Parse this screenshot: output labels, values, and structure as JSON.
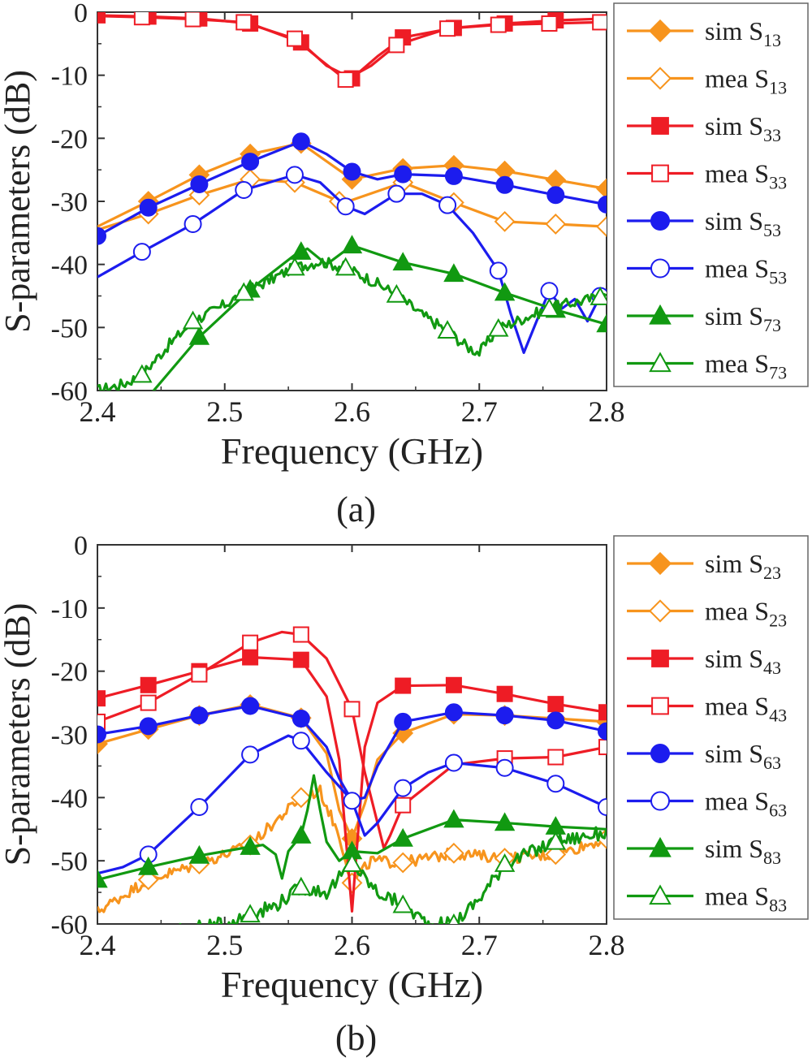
{
  "chart_data": [
    {
      "type": "line",
      "panel_label": "(a)",
      "xlabel": "Frequency (GHz)",
      "ylabel": "S-parameters (dB)",
      "xlim": [
        2.4,
        2.8
      ],
      "ylim": [
        -60,
        0
      ],
      "xticks": [
        "2.4",
        "2.5",
        "2.6",
        "2.7",
        "2.8"
      ],
      "yticks": [
        "0",
        "-10",
        "-20",
        "-30",
        "-40",
        "-50",
        "-60"
      ],
      "legend_position": "right",
      "series": [
        {
          "name_main": "sim S",
          "name_sub": "13",
          "color": "#f7941d",
          "marker": "diamond",
          "filled": true,
          "x": [
            2.4,
            2.44,
            2.48,
            2.52,
            2.56,
            2.6,
            2.64,
            2.68,
            2.72,
            2.76,
            2.8
          ],
          "y": [
            -34,
            -30,
            -25.8,
            -22.5,
            -20.8,
            -26.5,
            -24.8,
            -24.3,
            -25.2,
            -26.6,
            -28
          ],
          "markers_x": [
            2.44,
            2.48,
            2.52,
            2.56,
            2.6,
            2.64,
            2.68,
            2.72,
            2.76,
            2.8
          ]
        },
        {
          "name_main": "mea S",
          "name_sub": "13",
          "color": "#f7941d",
          "marker": "diamond",
          "filled": false,
          "x": [
            2.4,
            2.44,
            2.48,
            2.52,
            2.555,
            2.59,
            2.6,
            2.64,
            2.68,
            2.72,
            2.76,
            2.8
          ],
          "y": [
            -34.5,
            -32,
            -29,
            -26.5,
            -27,
            -30,
            -29.8,
            -27,
            -30.2,
            -33.2,
            -33.6,
            -34
          ],
          "markers_x": [
            2.44,
            2.48,
            2.52,
            2.555,
            2.59,
            2.64,
            2.68,
            2.72,
            2.76,
            2.8
          ]
        },
        {
          "name_main": "sim S",
          "name_sub": "33",
          "color": "#ee1c25",
          "marker": "square",
          "filled": true,
          "x": [
            2.4,
            2.44,
            2.48,
            2.52,
            2.56,
            2.58,
            2.6,
            2.62,
            2.64,
            2.68,
            2.72,
            2.76,
            2.8
          ],
          "y": [
            -0.5,
            -0.7,
            -1.0,
            -1.8,
            -4.8,
            -8.5,
            -10.5,
            -7,
            -4,
            -2.5,
            -1.8,
            -1.3,
            -1.0
          ],
          "markers_x": [
            2.4,
            2.44,
            2.48,
            2.52,
            2.56,
            2.6,
            2.64,
            2.68,
            2.72,
            2.76
          ]
        },
        {
          "name_main": "mea S",
          "name_sub": "33",
          "color": "#ee1c25",
          "marker": "square",
          "filled": false,
          "x": [
            2.4,
            2.435,
            2.475,
            2.515,
            2.555,
            2.575,
            2.595,
            2.615,
            2.635,
            2.675,
            2.715,
            2.755,
            2.795,
            2.8
          ],
          "y": [
            -0.6,
            -0.8,
            -1.1,
            -1.6,
            -4.2,
            -7.5,
            -10.7,
            -8.5,
            -5.2,
            -2.6,
            -2,
            -1.8,
            -1.6,
            -1.6
          ],
          "markers_x": [
            2.435,
            2.475,
            2.515,
            2.555,
            2.595,
            2.635,
            2.675,
            2.715,
            2.755,
            2.795
          ]
        },
        {
          "name_main": "sim S",
          "name_sub": "53",
          "color": "#1c1cee",
          "marker": "circle",
          "filled": true,
          "x": [
            2.4,
            2.44,
            2.48,
            2.52,
            2.56,
            2.58,
            2.6,
            2.62,
            2.64,
            2.68,
            2.72,
            2.76,
            2.8
          ],
          "y": [
            -35.5,
            -31,
            -27.3,
            -23.7,
            -20.5,
            -22.5,
            -25.3,
            -26.5,
            -25.7,
            -26,
            -27.4,
            -29,
            -30.5
          ],
          "markers_x": [
            2.4,
            2.44,
            2.48,
            2.52,
            2.56,
            2.6,
            2.64,
            2.68,
            2.72,
            2.76,
            2.8
          ]
        },
        {
          "name_main": "mea S",
          "name_sub": "53",
          "color": "#1c1cee",
          "marker": "circle",
          "filled": false,
          "x": [
            2.4,
            2.435,
            2.475,
            2.515,
            2.555,
            2.575,
            2.595,
            2.61,
            2.635,
            2.655,
            2.675,
            2.695,
            2.715,
            2.725,
            2.735,
            2.745,
            2.755,
            2.765,
            2.775,
            2.785,
            2.795,
            2.8
          ],
          "y": [
            -42,
            -38,
            -33.6,
            -28.2,
            -25.8,
            -27,
            -30.8,
            -32,
            -28.8,
            -28.8,
            -30.6,
            -35,
            -41,
            -48,
            -54,
            -49,
            -44.2,
            -47,
            -45.5,
            -49,
            -45,
            -44
          ],
          "markers_x": [
            2.435,
            2.475,
            2.515,
            2.555,
            2.595,
            2.635,
            2.675,
            2.715,
            2.755,
            2.795
          ]
        },
        {
          "name_main": "sim S",
          "name_sub": "73",
          "color": "#119911",
          "marker": "triangle",
          "filled": true,
          "x": [
            2.4,
            2.44,
            2.48,
            2.52,
            2.555,
            2.565,
            2.58,
            2.6,
            2.64,
            2.68,
            2.72,
            2.76,
            2.8
          ],
          "y": [
            -66,
            -61,
            -51.5,
            -44,
            -38.5,
            -37.5,
            -40,
            -37,
            -39.7,
            -41.5,
            -44.5,
            -47.2,
            -49.5
          ],
          "markers_x": [
            2.48,
            2.52,
            2.56,
            2.6,
            2.64,
            2.68,
            2.72,
            2.76,
            2.8
          ]
        },
        {
          "name_main": "mea S",
          "name_sub": "73",
          "color": "#119911",
          "marker": "triangle",
          "filled": false,
          "x": [
            2.4,
            2.42,
            2.435,
            2.455,
            2.475,
            2.495,
            2.515,
            2.535,
            2.555,
            2.575,
            2.595,
            2.615,
            2.635,
            2.655,
            2.675,
            2.69,
            2.7,
            2.715,
            2.735,
            2.755,
            2.775,
            2.795,
            2.8
          ],
          "y": [
            -60,
            -59,
            -57.5,
            -53,
            -49,
            -47,
            -44.5,
            -42.5,
            -40.5,
            -39.5,
            -40.5,
            -42.5,
            -44.8,
            -48,
            -50.5,
            -53,
            -54,
            -50.2,
            -48.5,
            -47,
            -46,
            -45.2,
            -45
          ],
          "markers_x": [
            2.435,
            2.475,
            2.515,
            2.555,
            2.595,
            2.635,
            2.675,
            2.715,
            2.755,
            2.795
          ],
          "noise": 0.9
        }
      ]
    },
    {
      "type": "line",
      "panel_label": "(b)",
      "xlabel": "Frequency (GHz)",
      "ylabel": "S-parameters (dB)",
      "xlim": [
        2.4,
        2.8
      ],
      "ylim": [
        -60,
        0
      ],
      "xticks": [
        "2.4",
        "2.5",
        "2.6",
        "2.7",
        "2.8"
      ],
      "yticks": [
        "0",
        "-10",
        "-20",
        "-30",
        "-40",
        "-50",
        "-60"
      ],
      "legend_position": "right",
      "series": [
        {
          "name_main": "sim S",
          "name_sub": "23",
          "color": "#f7941d",
          "marker": "diamond",
          "filled": true,
          "x": [
            2.4,
            2.44,
            2.48,
            2.52,
            2.56,
            2.58,
            2.59,
            2.6,
            2.61,
            2.62,
            2.64,
            2.68,
            2.72,
            2.76,
            2.8
          ],
          "y": [
            -31.5,
            -29.2,
            -27,
            -25.3,
            -27.4,
            -33,
            -42,
            -46.5,
            -41,
            -34,
            -29.8,
            -26.8,
            -27,
            -27.5,
            -28
          ],
          "markers_x": [
            2.4,
            2.44,
            2.48,
            2.52,
            2.56,
            2.6,
            2.64,
            2.68,
            2.72,
            2.76,
            2.8
          ]
        },
        {
          "name_main": "mea S",
          "name_sub": "23",
          "color": "#f7941d",
          "marker": "diamond",
          "filled": false,
          "x": [
            2.4,
            2.44,
            2.48,
            2.52,
            2.56,
            2.575,
            2.59,
            2.6,
            2.615,
            2.64,
            2.68,
            2.72,
            2.76,
            2.8
          ],
          "y": [
            -58,
            -53,
            -50.5,
            -47.5,
            -40,
            -39,
            -46,
            -53.5,
            -50,
            -50.3,
            -48.8,
            -49.6,
            -49,
            -46.5
          ],
          "markers_x": [
            2.44,
            2.48,
            2.52,
            2.56,
            2.6,
            2.64,
            2.68,
            2.72,
            2.76,
            2.8
          ],
          "noise": 0.9
        },
        {
          "name_main": "sim S",
          "name_sub": "43",
          "color": "#ee1c25",
          "marker": "square",
          "filled": true,
          "x": [
            2.4,
            2.44,
            2.48,
            2.52,
            2.56,
            2.58,
            2.59,
            2.6,
            2.605,
            2.61,
            2.62,
            2.64,
            2.68,
            2.72,
            2.76,
            2.8
          ],
          "y": [
            -24.3,
            -22.2,
            -20,
            -17.8,
            -18.2,
            -24,
            -34,
            -58,
            -45,
            -32,
            -25,
            -22.3,
            -22.2,
            -23.6,
            -25.2,
            -26.5
          ],
          "markers_x": [
            2.4,
            2.44,
            2.48,
            2.52,
            2.56,
            2.64,
            2.68,
            2.72,
            2.76,
            2.8
          ]
        },
        {
          "name_main": "mea S",
          "name_sub": "43",
          "color": "#ee1c25",
          "marker": "square",
          "filled": false,
          "x": [
            2.4,
            2.44,
            2.48,
            2.52,
            2.545,
            2.56,
            2.58,
            2.6,
            2.61,
            2.62,
            2.625,
            2.63,
            2.64,
            2.68,
            2.72,
            2.76,
            2.8
          ],
          "y": [
            -28,
            -25,
            -20.5,
            -15.5,
            -13.8,
            -14.2,
            -18,
            -26,
            -36,
            -44,
            -48,
            -46,
            -41.2,
            -34.8,
            -33.8,
            -33.6,
            -32
          ],
          "markers_x": [
            2.4,
            2.44,
            2.48,
            2.52,
            2.56,
            2.6,
            2.64,
            2.72,
            2.76,
            2.8
          ]
        },
        {
          "name_main": "sim S",
          "name_sub": "63",
          "color": "#1c1cee",
          "marker": "circle",
          "filled": true,
          "x": [
            2.4,
            2.44,
            2.48,
            2.52,
            2.56,
            2.58,
            2.59,
            2.6,
            2.61,
            2.62,
            2.64,
            2.68,
            2.72,
            2.76,
            2.8
          ],
          "y": [
            -30,
            -28.7,
            -27,
            -25.5,
            -27.5,
            -32,
            -37,
            -40.5,
            -40,
            -35,
            -28,
            -26.5,
            -27,
            -27.8,
            -29.5
          ],
          "markers_x": [
            2.4,
            2.44,
            2.48,
            2.52,
            2.56,
            2.64,
            2.68,
            2.72,
            2.76,
            2.8
          ]
        },
        {
          "name_main": "mea S",
          "name_sub": "63",
          "color": "#1c1cee",
          "marker": "circle",
          "filled": false,
          "x": [
            2.4,
            2.42,
            2.44,
            2.48,
            2.52,
            2.55,
            2.56,
            2.58,
            2.6,
            2.61,
            2.62,
            2.64,
            2.66,
            2.68,
            2.72,
            2.76,
            2.8
          ],
          "y": [
            -52,
            -51,
            -49,
            -41.5,
            -33.2,
            -30.2,
            -31,
            -36,
            -40.5,
            -46,
            -44,
            -38.5,
            -36,
            -34.5,
            -35.3,
            -37.8,
            -41.5
          ],
          "markers_x": [
            2.44,
            2.48,
            2.52,
            2.56,
            2.6,
            2.64,
            2.68,
            2.72,
            2.76,
            2.8
          ]
        },
        {
          "name_main": "sim S",
          "name_sub": "83",
          "color": "#119911",
          "marker": "triangle",
          "filled": true,
          "x": [
            2.4,
            2.44,
            2.48,
            2.52,
            2.53,
            2.54,
            2.545,
            2.55,
            2.56,
            2.565,
            2.57,
            2.575,
            2.58,
            2.59,
            2.6,
            2.62,
            2.64,
            2.68,
            2.72,
            2.76,
            2.8
          ],
          "y": [
            -53,
            -51,
            -49.2,
            -47.8,
            -47.5,
            -49,
            -52.8,
            -48.5,
            -46,
            -42,
            -36.5,
            -42,
            -47,
            -50,
            -48.5,
            -48.8,
            -46.5,
            -43.5,
            -44,
            -44.6,
            -45
          ],
          "markers_x": [
            2.4,
            2.44,
            2.48,
            2.52,
            2.56,
            2.6,
            2.64,
            2.68,
            2.72,
            2.76
          ]
        },
        {
          "name_main": "mea S",
          "name_sub": "83",
          "color": "#119911",
          "marker": "triangle",
          "filled": false,
          "x": [
            2.4,
            2.44,
            2.48,
            2.5,
            2.52,
            2.54,
            2.56,
            2.58,
            2.6,
            2.62,
            2.64,
            2.66,
            2.68,
            2.7,
            2.72,
            2.76,
            2.8
          ],
          "y": [
            -62,
            -61.5,
            -60.5,
            -60,
            -58.5,
            -57,
            -54.2,
            -55,
            -50.5,
            -55,
            -57,
            -60,
            -60,
            -56,
            -50.5,
            -47,
            -45.5
          ],
          "markers_x": [
            2.52,
            2.56,
            2.6,
            2.64,
            2.68,
            2.72,
            2.76
          ],
          "noise": 1.1
        }
      ]
    }
  ]
}
